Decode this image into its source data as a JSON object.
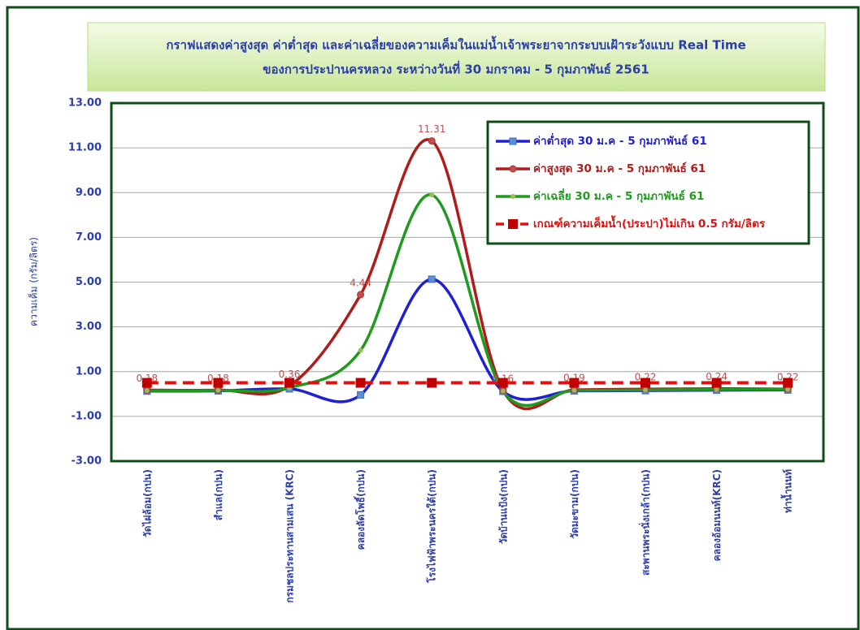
{
  "chart_data": {
    "type": "line",
    "title": "กราฟแสดงค่าสูงสุด ค่าต่ำสุด และค่าเฉลี่ยของความเค็มในแม่น้ำเจ้าพระยาจากระบบเฝ้าระวังแบบ Real Time",
    "subtitle": "ของการประปานครหลวง ระหว่างวันที่  30 มกราคม  - 5 กุมภาพันธ์ 2561",
    "y_label": "ความเค็ม (กรัม/ลิตร)",
    "categories": [
      "วัดไผ่ล้อม(กปน)",
      "สำแล(กปน)",
      "กรมชลประทานสามเสน (KRC)",
      "คลองลัดโพธิ์(กปน)",
      "โรงไฟฟ้าพระนครใต้(กปน)",
      "วัดบ้านแป้ง(กปน)",
      "วัดมะขาม(กปน)",
      "สะพานพระนั่งเกล้า(กปน)",
      "คลองอ้อมนนท์(KRC)",
      "ท่าน้ำนนท์"
    ],
    "series": [
      {
        "name": "ค่าต่ำสุด 30 ม.ค - 5 กุมภาพันธ์ 61",
        "color": "#1f1fd6",
        "marker": "square",
        "smooth": true,
        "values": [
          0.13,
          0.14,
          0.23,
          -0.04,
          5.13,
          0.12,
          0.14,
          0.15,
          0.17,
          0.18
        ]
      },
      {
        "name": "ค่าสูงสุด 30 ม.ค - 5 กุมภาพันธ์ 61",
        "color": "#b01c1c",
        "marker": "circle",
        "smooth": true,
        "data_labels": true,
        "values": [
          0.18,
          0.18,
          0.36,
          4.44,
          11.31,
          0.16,
          0.19,
          0.22,
          0.24,
          0.22
        ]
      },
      {
        "name": "ค่าเฉลี่ย 30 ม.ค - 5 กุมภาพันธ์ 61",
        "color": "#1e9a1e",
        "marker": "dot",
        "smooth": true,
        "values": [
          0.15,
          0.16,
          0.28,
          1.95,
          8.9,
          0.13,
          0.16,
          0.18,
          0.2,
          0.2
        ]
      },
      {
        "name": "เกณฑ์ความเค็มน้ำ(ประปา)ไม่เกิน 0.5 กรัม/ลิตร",
        "color": "#e01010",
        "marker": "bigsquare",
        "smooth": false,
        "dashed": true,
        "values": [
          0.5,
          0.5,
          0.5,
          0.5,
          0.5,
          0.5,
          0.5,
          0.5,
          0.5,
          0.5
        ]
      }
    ],
    "ylim": [
      -3,
      13
    ],
    "yticks": [
      {
        "value": -3,
        "label": "-3.00"
      },
      {
        "value": -1,
        "label": "-1.00"
      },
      {
        "value": 1,
        "label": "1.00"
      },
      {
        "value": 3,
        "label": "3.00"
      },
      {
        "value": 5,
        "label": "5.00"
      },
      {
        "value": 7,
        "label": "7.00"
      },
      {
        "value": 9,
        "label": "9.00"
      },
      {
        "value": 11,
        "label": "11.00"
      },
      {
        "value": 13,
        "label": "13.00"
      }
    ],
    "grid": true,
    "legend": "top-right"
  }
}
